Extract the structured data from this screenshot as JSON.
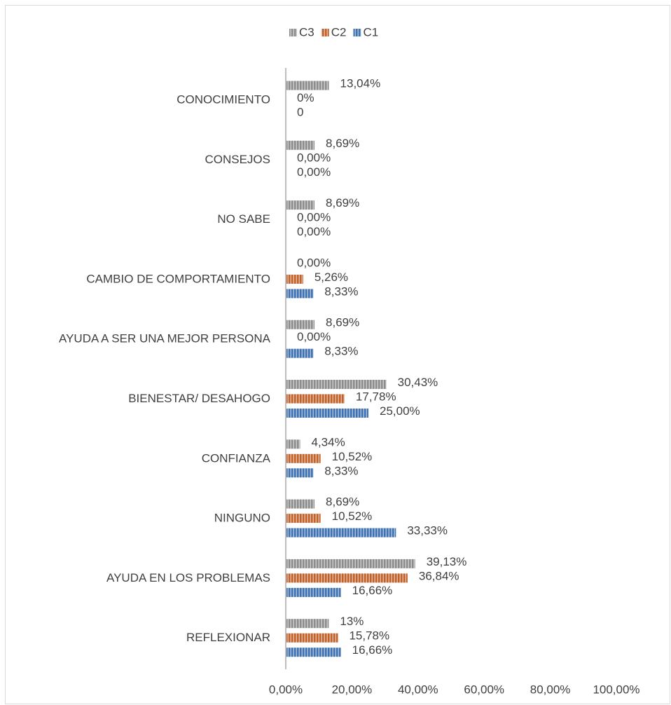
{
  "chart_data": {
    "type": "barh",
    "categories": [
      "CONOCIMIENTO",
      "CONSEJOS",
      "NO SABE",
      "CAMBIO DE COMPORTAMIENTO",
      "AYUDA A SER UNA MEJOR PERSONA",
      "BIENESTAR/ DESAHOGO",
      "CONFIANZA",
      "NINGUNO",
      "AYUDA EN LOS PROBLEMAS",
      "REFLEXIONAR"
    ],
    "series": [
      {
        "name": "C3",
        "color": "#8c8c8c",
        "values": [
          13.04,
          8.69,
          8.69,
          0,
          8.69,
          30.43,
          4.34,
          8.69,
          39.13,
          13
        ],
        "value_labels": [
          "13,04%",
          "8,69%",
          "8,69%",
          "0,00%",
          "8,69%",
          "30,43%",
          "4,34%",
          "8,69%",
          "39,13%",
          "13%"
        ]
      },
      {
        "name": "C2",
        "color": "#c0622b",
        "values": [
          0,
          0,
          0,
          5.26,
          0,
          17.78,
          10.52,
          10.52,
          36.84,
          15.78
        ],
        "value_labels": [
          "0%",
          "0,00%",
          "0,00%",
          "5,26%",
          "0,00%",
          "17,78%",
          "10,52%",
          "10,52%",
          "36,84%",
          "15,78%"
        ]
      },
      {
        "name": "C1",
        "color": "#3f72af",
        "values": [
          0,
          0,
          0,
          8.33,
          8.33,
          25,
          8.33,
          33.33,
          16.66,
          16.66
        ],
        "value_labels": [
          "0",
          "0,00%",
          "0,00%",
          "8,33%",
          "8,33%",
          "25,00%",
          "8,33%",
          "33,33%",
          "16,66%",
          "16,66%"
        ]
      }
    ],
    "xlim": [
      0,
      100
    ],
    "xticks": [
      {
        "value": 0,
        "label": "0,00%"
      },
      {
        "value": 20,
        "label": "20,00%"
      },
      {
        "value": 40,
        "label": "40,00%"
      },
      {
        "value": 60,
        "label": "60,00%"
      },
      {
        "value": 80,
        "label": "80,00%"
      },
      {
        "value": 100,
        "label": "100,00%"
      }
    ],
    "legend": "top"
  }
}
